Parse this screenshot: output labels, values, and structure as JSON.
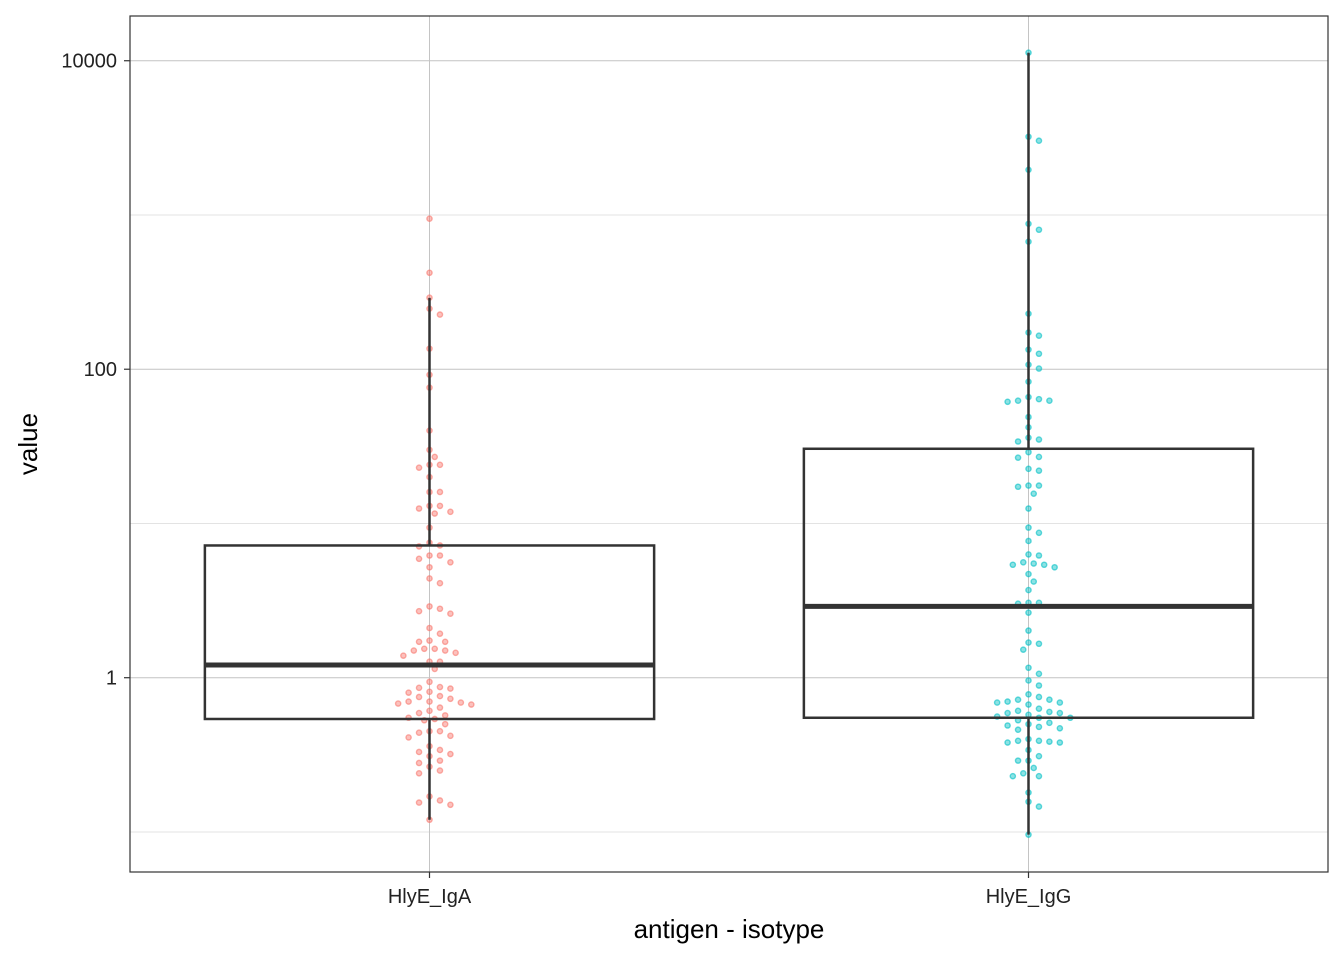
{
  "chart_data": {
    "type": "box",
    "title": "",
    "xlabel": "antigen - isotype",
    "ylabel": "value",
    "y_scale": "log10",
    "ylim": [
      0.055,
      19500
    ],
    "y_major_ticks": [
      1,
      100,
      10000
    ],
    "y_tick_labels": [
      "1",
      "100",
      "10000"
    ],
    "y_minor_gridlines": [
      0.1,
      10,
      1000
    ],
    "grid": true,
    "categories": [
      "HlyE_IgA",
      "HlyE_IgG"
    ],
    "colors": {
      "HlyE_IgA": "#F8766D",
      "HlyE_IgG": "#00BFC4",
      "box": "#333333"
    },
    "boxes": [
      {
        "category": "HlyE_IgA",
        "whisker_low": 0.12,
        "q1": 0.54,
        "median": 1.21,
        "q3": 7.2,
        "whisker_high": 290
      },
      {
        "category": "HlyE_IgG",
        "whisker_low": 0.096,
        "q1": 0.55,
        "median": 2.9,
        "q3": 30.5,
        "whisker_high": 11270
      }
    ],
    "points": {
      "HlyE_IgA": [
        946,
        422,
        291,
        247,
        226,
        136,
        92,
        76,
        40,
        30,
        27,
        24,
        24,
        23,
        20,
        16,
        16,
        13,
        12.5,
        11.9,
        13,
        11.6,
        9.4,
        7.5,
        7.2,
        7.1,
        6.2,
        5.9,
        6.2,
        5.6,
        5.2,
        4.4,
        4.1,
        2.8,
        2.6,
        2.7,
        2.9,
        2.1,
        1.93,
        1.74,
        1.71,
        1.71,
        1.54,
        1.5,
        1.45,
        1.5,
        1.54,
        1.39,
        1.27,
        1.27,
        1.14,
        0.94,
        0.87,
        0.86,
        0.85,
        0.81,
        0.8,
        0.75,
        0.76,
        0.73,
        0.7,
        0.7,
        0.69,
        0.68,
        0.67,
        0.64,
        0.61,
        0.59,
        0.57,
        0.55,
        0.54,
        0.53,
        0.5,
        0.45,
        0.44,
        0.42,
        0.45,
        0.41,
        0.36,
        0.34,
        0.33,
        0.32,
        0.31,
        0.29,
        0.28,
        0.265,
        0.25,
        0.24,
        0.16,
        0.155,
        0.15,
        0.17,
        0.12
      ],
      "HlyE_IgG": [
        11270,
        3215,
        3030,
        1963,
        877,
        802,
        671,
        229,
        173,
        165,
        134,
        126,
        107,
        101,
        83,
        66,
        62.5,
        61.5,
        62.5,
        64,
        49,
        42,
        36,
        34,
        35,
        29,
        27,
        26.7,
        22.6,
        22,
        17.6,
        17.3,
        17.6,
        15.6,
        12.5,
        9.4,
        8.7,
        7.7,
        6.3,
        6.2,
        5.6,
        5.4,
        5.4,
        5.5,
        5.2,
        4.7,
        4.2,
        3.7,
        3.06,
        3.02,
        3.06,
        2.64,
        2.02,
        1.69,
        1.66,
        1.52,
        1.16,
        1.06,
        0.96,
        0.89,
        0.78,
        0.75,
        0.72,
        0.69,
        0.69,
        0.7,
        0.72,
        0.67,
        0.63,
        0.61,
        0.6,
        0.59,
        0.59,
        0.575,
        0.56,
        0.55,
        0.55,
        0.53,
        0.51,
        0.5,
        0.49,
        0.48,
        0.47,
        0.46,
        0.39,
        0.385,
        0.38,
        0.38,
        0.39,
        0.4,
        0.34,
        0.31,
        0.29,
        0.29,
        0.26,
        0.24,
        0.23,
        0.23,
        0.18,
        0.157,
        0.146,
        0.096
      ]
    }
  }
}
